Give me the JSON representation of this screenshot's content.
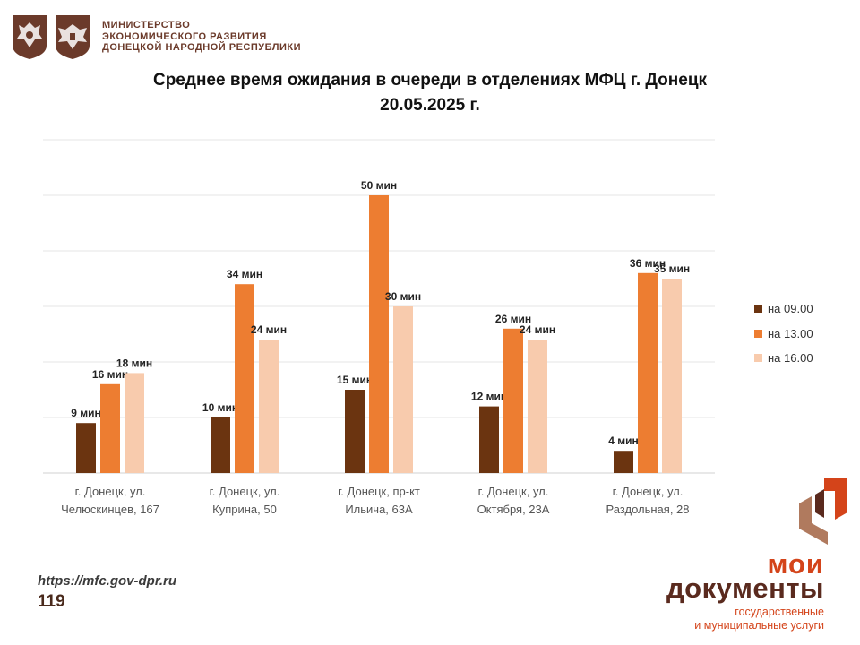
{
  "header": {
    "ministry_lines": [
      "МИНИСТЕРСТВО",
      "ЭКОНОМИЧЕСКОГО РАЗВИТИЯ",
      "ДОНЕЦКОЙ НАРОДНОЙ РЕСПУБЛИКИ"
    ],
    "emblem_color": "#6b3a2a"
  },
  "chart_data": {
    "type": "bar",
    "title_lines": [
      "Среднее время ожидания в очереди в отделениях МФЦ г. Донецк",
      "20.05.2025 г."
    ],
    "categories": [
      [
        "г. Донецк, ул.",
        "Челюскинцев, 167"
      ],
      [
        "г. Донецк, ул.",
        "Куприна, 50"
      ],
      [
        "г. Донецк, пр-кт",
        "Ильича, 63А"
      ],
      [
        "г. Донецк, ул.",
        "Октября, 23А"
      ],
      [
        "г. Донецк, ул.",
        "Раздольная, 28"
      ]
    ],
    "series": [
      {
        "name": "на 09.00",
        "color": "#6b3410",
        "values": [
          9,
          10,
          15,
          12,
          4
        ]
      },
      {
        "name": "на 13.00",
        "color": "#ed7d31",
        "values": [
          16,
          34,
          50,
          26,
          36
        ]
      },
      {
        "name": "на 16.00",
        "color": "#f8cbad",
        "values": [
          18,
          24,
          30,
          24,
          35
        ]
      }
    ],
    "value_suffix": " мин",
    "ylim": [
      0,
      60
    ],
    "ytick_step": 10,
    "grid": true,
    "legend_position": "right"
  },
  "footer": {
    "url": "https://mfc.gov-dpr.ru",
    "page_number": "119"
  },
  "brand": {
    "line1": "мои",
    "line2": "документы",
    "line3": "государственные",
    "line4": "и муниципальные услуги",
    "accent_color": "#d4441a",
    "dark_color": "#5a2a1e"
  }
}
